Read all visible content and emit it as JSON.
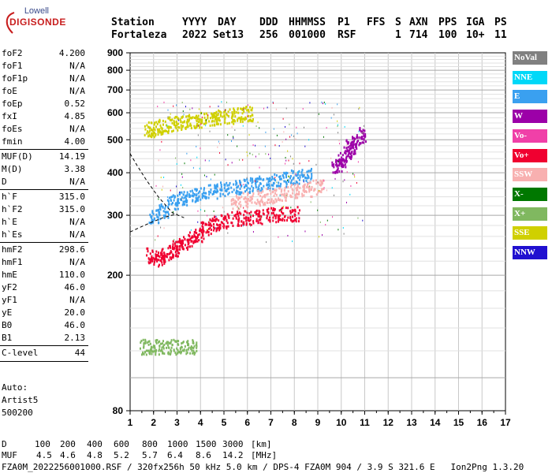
{
  "logo": {
    "line1": "Lowell",
    "line2": "DIGISONDE"
  },
  "header": {
    "labels": [
      "Station",
      "YYYY",
      "DAY",
      "DDD",
      "HHMMSS",
      "P1",
      "FFS",
      "S",
      "AXN",
      "PPS",
      "IGA",
      "PS"
    ],
    "values": [
      "Fortaleza",
      "2022",
      "Set13",
      "256",
      "001000",
      "RSF",
      "",
      "1",
      "714",
      "100",
      "10+",
      "11"
    ]
  },
  "params": [
    {
      "key": "foF2",
      "value": "4.200"
    },
    {
      "key": "foF1",
      "value": "N/A"
    },
    {
      "key": "foF1p",
      "value": "N/A"
    },
    {
      "key": "foE",
      "value": "N/A"
    },
    {
      "key": "foEp",
      "value": "0.52"
    },
    {
      "key": "fxI",
      "value": "4.85"
    },
    {
      "key": "foEs",
      "value": "N/A"
    },
    {
      "key": "fmin",
      "value": "4.00"
    },
    {
      "key": "MUF(D)",
      "value": "14.19"
    },
    {
      "key": "M(D)",
      "value": "3.38"
    },
    {
      "key": "D",
      "value": "N/A"
    },
    {
      "key": "h`F",
      "value": "315.0"
    },
    {
      "key": "h`F2",
      "value": "315.0"
    },
    {
      "key": "h`E",
      "value": "N/A"
    },
    {
      "key": "h`Es",
      "value": "N/A"
    },
    {
      "key": "hmF2",
      "value": "298.6"
    },
    {
      "key": "hmF1",
      "value": "N/A"
    },
    {
      "key": "hmE",
      "value": "110.0"
    },
    {
      "key": "yF2",
      "value": "46.0"
    },
    {
      "key": "yF1",
      "value": "N/A"
    },
    {
      "key": "yE",
      "value": "20.0"
    },
    {
      "key": "B0",
      "value": "46.0"
    },
    {
      "key": "B1",
      "value": "2.13"
    },
    {
      "key": "C-level",
      "value": "44"
    }
  ],
  "autoscaling": {
    "line1": "Auto:",
    "line2": "Artist5",
    "line3": "500200"
  },
  "chart_data": {
    "type": "scatter",
    "xlabel": "",
    "ylabel": "",
    "xlim": [
      1,
      17
    ],
    "ylim": [
      80,
      900
    ],
    "y_scale": "log",
    "x_ticks": [
      "1",
      "2",
      "3",
      "4",
      "5",
      "6",
      "7",
      "8",
      "9",
      "10",
      "11",
      "12",
      "13",
      "14",
      "15",
      "16",
      "17"
    ],
    "y_ticks": [
      "80",
      "200",
      "300",
      "400",
      "500",
      "600",
      "700",
      "800",
      "900"
    ],
    "grid": true,
    "legend": [
      {
        "name": "NoVal",
        "color": "#808080"
      },
      {
        "name": "NNE",
        "color": "#00d8f8"
      },
      {
        "name": "E",
        "color": "#3aa0f0"
      },
      {
        "name": "W",
        "color": "#9c00a8"
      },
      {
        "name": "Vo-",
        "color": "#f040a8"
      },
      {
        "name": "Vo+",
        "color": "#f00030"
      },
      {
        "name": "SSW",
        "color": "#f8b0b0"
      },
      {
        "name": "X-",
        "color": "#007800"
      },
      {
        "name": "X+",
        "color": "#80b860"
      },
      {
        "name": "SSE",
        "color": "#d0d000"
      },
      {
        "name": "NNW",
        "color": "#2010d0"
      }
    ],
    "legend_position": "right",
    "traces": [
      {
        "name": "Vo+",
        "x": [
          1.9,
          2.2,
          2.5,
          2.8,
          3.0,
          3.3,
          3.6,
          3.9,
          4.2,
          4.6,
          5.0,
          5.5,
          6.0,
          6.5,
          7.0,
          7.5,
          8.0
        ],
        "y": [
          230,
          225,
          232,
          238,
          243,
          250,
          258,
          265,
          275,
          285,
          290,
          295,
          298,
          300,
          302,
          303,
          305
        ]
      },
      {
        "name": "SSE",
        "x": [
          1.8,
          2.1,
          2.4,
          2.8,
          3.2,
          3.6,
          4.0,
          4.4,
          4.8,
          5.2,
          5.6,
          6.0
        ],
        "y": [
          540,
          545,
          550,
          560,
          565,
          570,
          575,
          580,
          585,
          590,
          595,
          600
        ]
      },
      {
        "name": "E",
        "x": [
          2.0,
          2.4,
          2.8,
          3.2,
          3.6,
          4.0,
          4.5,
          5.0,
          5.5,
          6.0,
          6.5,
          7.0,
          7.5,
          8.0,
          8.5
        ],
        "y": [
          300,
          310,
          330,
          340,
          345,
          350,
          355,
          360,
          365,
          370,
          375,
          380,
          385,
          390,
          395
        ]
      },
      {
        "name": "SSW",
        "x": [
          5.5,
          6.0,
          6.5,
          7.0,
          7.5,
          8.0,
          8.5,
          9.0
        ],
        "y": [
          330,
          335,
          340,
          345,
          350,
          355,
          360,
          365
        ]
      },
      {
        "name": "W",
        "x": [
          9.8,
          10.0,
          10.2,
          10.4,
          10.6,
          10.8
        ],
        "y": [
          420,
          440,
          460,
          480,
          500,
          520
        ]
      },
      {
        "name": "X+",
        "x": [
          1.6,
          2.0,
          2.4,
          2.8,
          3.2,
          3.6
        ],
        "y": [
          124,
          124,
          124,
          124,
          124,
          124
        ]
      }
    ],
    "dashed_curve_note": "dashed model profile from about (1.0, 455) down to (1.0, 268)"
  },
  "footer": {
    "d_label": "D",
    "d_values": [
      "100",
      "200",
      "400",
      "600",
      "800",
      "1000",
      "1500",
      "3000",
      "[km]"
    ],
    "muf_label": "MUF",
    "muf_values": [
      "4.5",
      "4.6",
      "4.8",
      "5.2",
      "5.7",
      "6.4",
      "8.6",
      "14.2",
      "[MHz]"
    ],
    "info": "FZA0M_2022256001000.RSF / 320fx256h 50 kHz 5.0 km / DPS-4 FZA0M 904 / 3.9 S 321.6 E   Ion2Png 1.3.20"
  }
}
